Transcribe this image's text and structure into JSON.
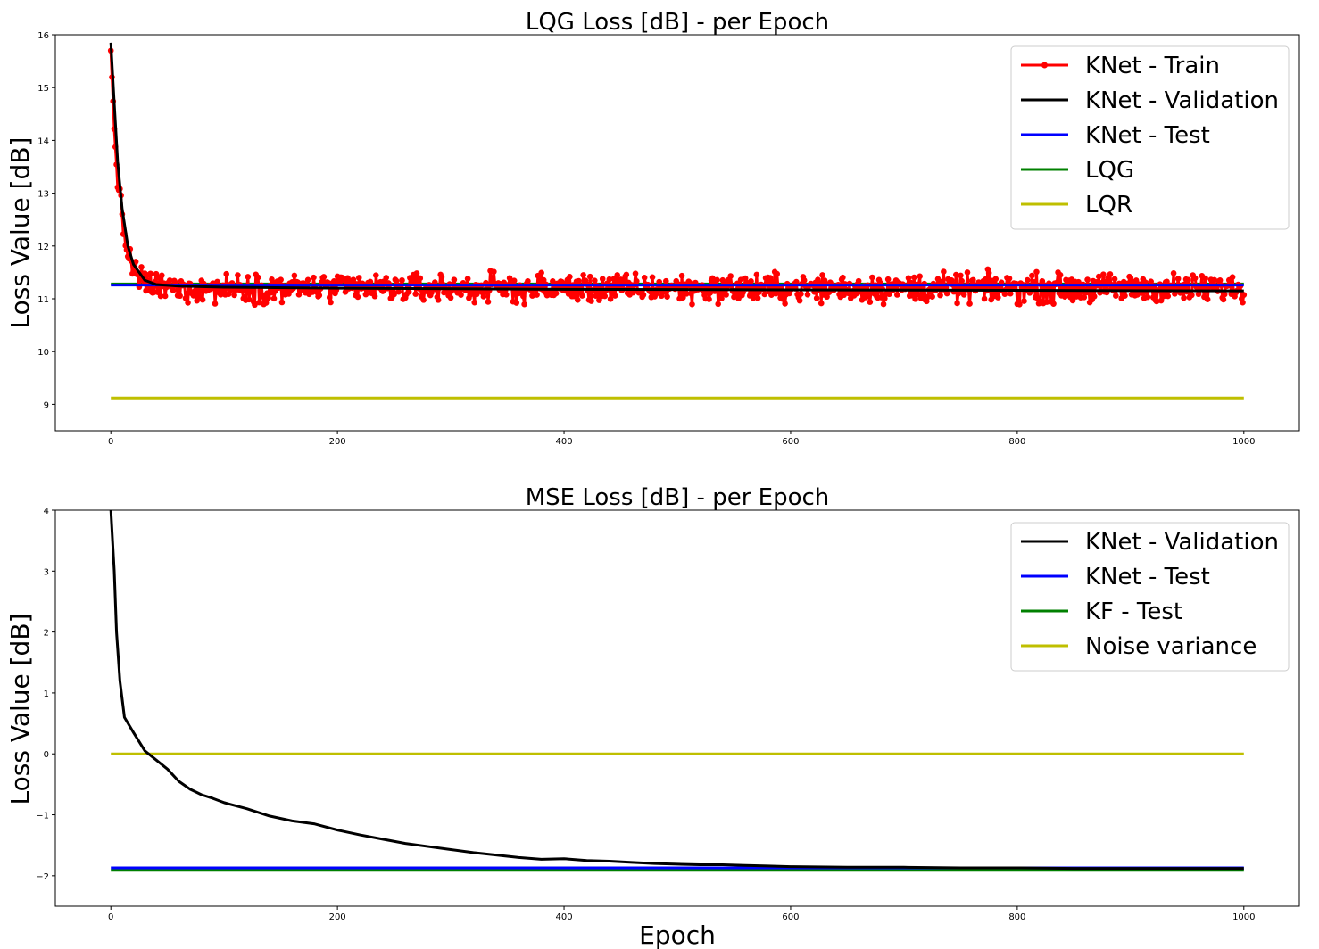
{
  "chart_data": [
    {
      "type": "line",
      "title": "LQG Loss [dB] - per Epoch",
      "xlabel": "",
      "ylabel": "Loss Value [dB]",
      "xlim": [
        -49,
        1049
      ],
      "ylim": [
        8.5,
        16
      ],
      "xticks": [
        0,
        200,
        400,
        600,
        800,
        1000
      ],
      "yticks": [
        9,
        10,
        11,
        12,
        13,
        14,
        15,
        16
      ],
      "grid": false,
      "legend_position": "top-right",
      "series": [
        {
          "name": "KNet - Train",
          "color": "#ff0000",
          "markers": true,
          "shape": "noisy-decay",
          "x_range": [
            0,
            1000
          ],
          "start": 15.7,
          "plateau": 11.2,
          "decay_epochs": 8,
          "noise_range": [
            10.8,
            11.75
          ]
        },
        {
          "name": "KNet - Validation",
          "color": "#000000",
          "points": [
            [
              0,
              15.85
            ],
            [
              3,
              14.7
            ],
            [
              6,
              13.6
            ],
            [
              10,
              12.7
            ],
            [
              15,
              12.0
            ],
            [
              20,
              11.65
            ],
            [
              30,
              11.35
            ],
            [
              40,
              11.27
            ],
            [
              60,
              11.24
            ],
            [
              100,
              11.22
            ],
            [
              200,
              11.2
            ],
            [
              400,
              11.18
            ],
            [
              600,
              11.17
            ],
            [
              800,
              11.16
            ],
            [
              1000,
              11.15
            ]
          ]
        },
        {
          "name": "KNet - Test",
          "color": "#0000ff",
          "points": [
            [
              0,
              11.26
            ],
            [
              1000,
              11.26
            ]
          ]
        },
        {
          "name": "LQG",
          "color": "#008000",
          "points": [
            [
              0,
              11.28
            ],
            [
              1000,
              11.28
            ]
          ]
        },
        {
          "name": "LQR",
          "color": "#bfbf00",
          "points": [
            [
              0,
              9.12
            ],
            [
              1000,
              9.12
            ]
          ]
        }
      ]
    },
    {
      "type": "line",
      "title": "MSE Loss [dB] - per Epoch",
      "xlabel": "Epoch",
      "ylabel": "Loss Value [dB]",
      "xlim": [
        -49,
        1049
      ],
      "ylim": [
        -2.5,
        4
      ],
      "xticks": [
        0,
        200,
        400,
        600,
        800,
        1000
      ],
      "yticks": [
        -2,
        -1,
        0,
        1,
        2,
        3,
        4
      ],
      "grid": false,
      "legend_position": "top-right",
      "series": [
        {
          "name": "KNet - Validation",
          "color": "#000000",
          "points": [
            [
              0,
              4.0
            ],
            [
              3,
              3.0
            ],
            [
              5,
              2.0
            ],
            [
              8,
              1.2
            ],
            [
              12,
              0.6
            ],
            [
              20,
              0.35
            ],
            [
              30,
              0.05
            ],
            [
              40,
              -0.1
            ],
            [
              50,
              -0.25
            ],
            [
              60,
              -0.45
            ],
            [
              70,
              -0.58
            ],
            [
              80,
              -0.67
            ],
            [
              90,
              -0.73
            ],
            [
              100,
              -0.8
            ],
            [
              120,
              -0.9
            ],
            [
              140,
              -1.02
            ],
            [
              160,
              -1.1
            ],
            [
              180,
              -1.15
            ],
            [
              200,
              -1.25
            ],
            [
              220,
              -1.33
            ],
            [
              240,
              -1.4
            ],
            [
              260,
              -1.47
            ],
            [
              280,
              -1.52
            ],
            [
              300,
              -1.57
            ],
            [
              320,
              -1.62
            ],
            [
              340,
              -1.66
            ],
            [
              360,
              -1.7
            ],
            [
              380,
              -1.73
            ],
            [
              400,
              -1.72
            ],
            [
              420,
              -1.75
            ],
            [
              440,
              -1.76
            ],
            [
              460,
              -1.78
            ],
            [
              480,
              -1.8
            ],
            [
              500,
              -1.81
            ],
            [
              520,
              -1.82
            ],
            [
              540,
              -1.82
            ],
            [
              560,
              -1.83
            ],
            [
              580,
              -1.84
            ],
            [
              600,
              -1.85
            ],
            [
              650,
              -1.86
            ],
            [
              700,
              -1.86
            ],
            [
              750,
              -1.87
            ],
            [
              800,
              -1.87
            ],
            [
              850,
              -1.88
            ],
            [
              900,
              -1.88
            ],
            [
              950,
              -1.88
            ],
            [
              1000,
              -1.88
            ]
          ]
        },
        {
          "name": "KNet - Test",
          "color": "#0000ff",
          "points": [
            [
              0,
              -1.87
            ],
            [
              1000,
              -1.87
            ]
          ]
        },
        {
          "name": "KF - Test",
          "color": "#008000",
          "points": [
            [
              0,
              -1.91
            ],
            [
              1000,
              -1.91
            ]
          ]
        },
        {
          "name": "Noise variance",
          "color": "#bfbf00",
          "points": [
            [
              0,
              0.0
            ],
            [
              1000,
              0.0
            ]
          ]
        }
      ]
    }
  ]
}
